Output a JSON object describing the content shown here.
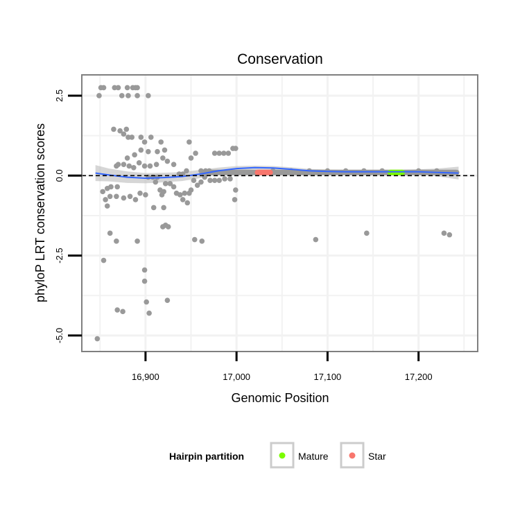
{
  "chart_data": {
    "type": "scatter",
    "title": "Conservation",
    "xlabel": "Genomic Position",
    "ylabel": "phyloP LRT conservation scores",
    "xlim": [
      16830,
      17265
    ],
    "ylim": [
      -5.5,
      3.15
    ],
    "x_ticks": [
      16900,
      17000,
      17100,
      17200
    ],
    "x_tick_labels": [
      "16,900",
      "17,000",
      "17,100",
      "17,200"
    ],
    "y_ticks": [
      -5.0,
      -2.5,
      0.0,
      2.5
    ],
    "y_tick_labels": [
      "-5.0",
      "-2.5",
      "0.0",
      "2.5"
    ],
    "grid": true,
    "reference_line": {
      "y": 0,
      "style": "dashed",
      "color": "#000000"
    },
    "colors": {
      "points": "#999999",
      "smooth_line": "#3366FF",
      "confidence_band": "#BBBBBB",
      "mature": "#7CFC00",
      "star": "#F8766D",
      "grid": "#F2F2F2",
      "panel_border": "#7F7F7F"
    },
    "points": [
      [
        16847,
        -5.1
      ],
      [
        16849,
        2.5
      ],
      [
        16851,
        2.75
      ],
      [
        16854,
        2.75
      ],
      [
        16866,
        2.75
      ],
      [
        16870,
        2.75
      ],
      [
        16880,
        2.75
      ],
      [
        16886,
        2.75
      ],
      [
        16889,
        2.75
      ],
      [
        16891,
        2.75
      ],
      [
        16874,
        2.5
      ],
      [
        16881,
        2.5
      ],
      [
        16891,
        2.5
      ],
      [
        16903,
        2.5
      ],
      [
        16865,
        1.45
      ],
      [
        16872,
        1.4
      ],
      [
        16876,
        1.3
      ],
      [
        16879,
        1.45
      ],
      [
        16881,
        1.2
      ],
      [
        16885,
        1.2
      ],
      [
        16895,
        1.2
      ],
      [
        16899,
        1.05
      ],
      [
        16906,
        1.2
      ],
      [
        16917,
        1.05
      ],
      [
        16921,
        0.8
      ],
      [
        16913,
        0.75
      ],
      [
        16903,
        0.75
      ],
      [
        16895,
        0.8
      ],
      [
        16888,
        0.65
      ],
      [
        16880,
        0.55
      ],
      [
        16870,
        0.35
      ],
      [
        16868,
        0.3
      ],
      [
        16876,
        0.35
      ],
      [
        16882,
        0.3
      ],
      [
        16887,
        0.25
      ],
      [
        16893,
        0.4
      ],
      [
        16899,
        0.3
      ],
      [
        16905,
        0.3
      ],
      [
        16912,
        0.35
      ],
      [
        16919,
        0.55
      ],
      [
        16924,
        0.45
      ],
      [
        16931,
        0.35
      ],
      [
        16937,
        0.05
      ],
      [
        16941,
        0.05
      ],
      [
        16945,
        0.15
      ],
      [
        16950,
        0.55
      ],
      [
        16948,
        1.05
      ],
      [
        16955,
        0.7
      ],
      [
        16961,
        0.15
      ],
      [
        16966,
        0.15
      ],
      [
        16970,
        0.15
      ],
      [
        16976,
        0.7
      ],
      [
        16981,
        0.7
      ],
      [
        16986,
        0.7
      ],
      [
        16991,
        0.7
      ],
      [
        16996,
        0.85
      ],
      [
        16999,
        0.85
      ],
      [
        16858,
        -0.4
      ],
      [
        16862,
        -0.35
      ],
      [
        16869,
        -0.35
      ],
      [
        16853,
        -0.5
      ],
      [
        16856,
        -0.75
      ],
      [
        16858,
        -0.95
      ],
      [
        16861,
        -0.65
      ],
      [
        16868,
        -0.65
      ],
      [
        16876,
        -0.7
      ],
      [
        16883,
        -0.65
      ],
      [
        16889,
        -0.75
      ],
      [
        16894,
        -0.55
      ],
      [
        16900,
        -0.6
      ],
      [
        16903,
        -0.05
      ],
      [
        16908,
        -0.05
      ],
      [
        16911,
        -0.2
      ],
      [
        16913,
        -0.05
      ],
      [
        16916,
        -0.45
      ],
      [
        16918,
        -0.6
      ],
      [
        16920,
        -0.5
      ],
      [
        16922,
        -0.25
      ],
      [
        16927,
        -0.25
      ],
      [
        16931,
        -0.35
      ],
      [
        16934,
        -0.55
      ],
      [
        16938,
        -0.6
      ],
      [
        16941,
        -0.75
      ],
      [
        16943,
        -0.55
      ],
      [
        16946,
        -0.85
      ],
      [
        16948,
        -0.55
      ],
      [
        16950,
        -0.45
      ],
      [
        16953,
        -0.15
      ],
      [
        16957,
        -0.3
      ],
      [
        16961,
        -0.2
      ],
      [
        16965,
        -0.05
      ],
      [
        16971,
        -0.15
      ],
      [
        16976,
        -0.15
      ],
      [
        16981,
        -0.15
      ],
      [
        16987,
        -0.1
      ],
      [
        16993,
        -0.1
      ],
      [
        16998,
        -0.75
      ],
      [
        16999,
        -0.45
      ],
      [
        16909,
        -1.0
      ],
      [
        16920,
        -1.0
      ],
      [
        16919,
        -1.6
      ],
      [
        16922,
        -1.55
      ],
      [
        16925,
        -1.6
      ],
      [
        16954,
        -2.0
      ],
      [
        16962,
        -2.05
      ],
      [
        16861,
        -1.8
      ],
      [
        16868,
        -2.05
      ],
      [
        16891,
        -2.05
      ],
      [
        16854,
        -2.65
      ],
      [
        16899,
        -2.95
      ],
      [
        16899,
        -3.3
      ],
      [
        16901,
        -3.95
      ],
      [
        16904,
        -4.3
      ],
      [
        16924,
        -3.9
      ],
      [
        16869,
        -4.2
      ],
      [
        16875,
        -4.25
      ],
      [
        17087,
        -2.0
      ],
      [
        17143,
        -1.8
      ],
      [
        17228,
        -1.8
      ],
      [
        17234,
        -1.85
      ],
      [
        16970,
        0.1
      ],
      [
        17010,
        0.1
      ],
      [
        17040,
        0.15
      ],
      [
        17060,
        0.15
      ],
      [
        17080,
        0.15
      ],
      [
        17100,
        0.15
      ],
      [
        17120,
        0.15
      ],
      [
        17140,
        0.15
      ],
      [
        17160,
        0.15
      ],
      [
        17200,
        0.15
      ],
      [
        17220,
        0.15
      ],
      [
        17242,
        0.1
      ]
    ],
    "dense_bands": [
      {
        "x_start": 16960,
        "x_end": 17244,
        "y": 0.1,
        "color": "#999999"
      },
      {
        "x_start": 17020,
        "x_end": 17040,
        "y": 0.1,
        "color": "#F8766D"
      },
      {
        "x_start": 17166,
        "x_end": 17185,
        "y": 0.1,
        "color": "#7CFC00"
      }
    ],
    "smooth": {
      "x": [
        16845,
        16860,
        16880,
        16900,
        16920,
        16940,
        16960,
        16980,
        17000,
        17020,
        17040,
        17060,
        17080,
        17100,
        17120,
        17140,
        17160,
        17180,
        17200,
        17220,
        17244
      ],
      "y": [
        0.08,
        0.02,
        -0.05,
        -0.08,
        -0.06,
        -0.03,
        0.05,
        0.15,
        0.22,
        0.25,
        0.24,
        0.2,
        0.15,
        0.13,
        0.12,
        0.12,
        0.12,
        0.12,
        0.12,
        0.1,
        0.08
      ],
      "se": [
        0.25,
        0.2,
        0.18,
        0.16,
        0.15,
        0.14,
        0.13,
        0.1,
        0.08,
        0.06,
        0.06,
        0.06,
        0.06,
        0.06,
        0.06,
        0.06,
        0.06,
        0.06,
        0.08,
        0.12,
        0.2
      ]
    },
    "legend": {
      "title": "Hairpin partition",
      "position": "bottom",
      "items": [
        {
          "label": "Mature",
          "color": "#7CFC00"
        },
        {
          "label": "Star",
          "color": "#F8766D"
        }
      ]
    }
  }
}
